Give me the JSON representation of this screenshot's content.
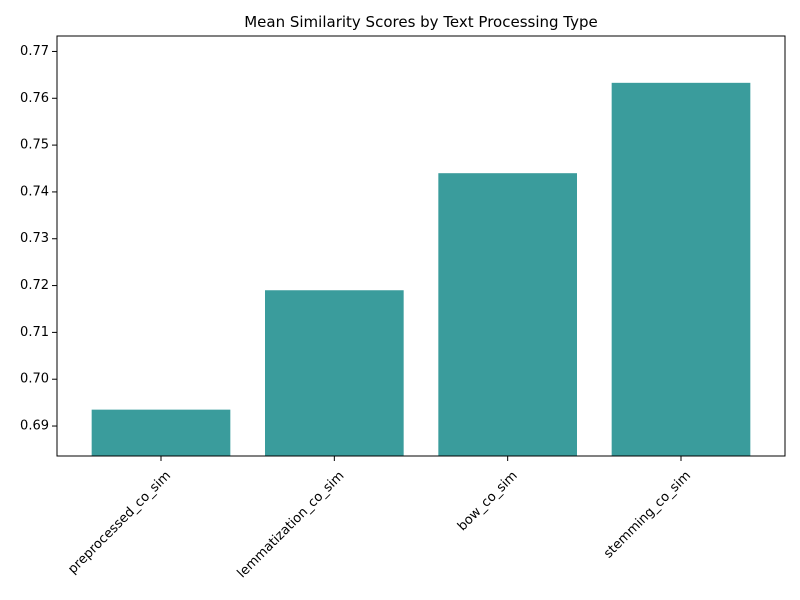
{
  "chart_data": {
    "type": "bar",
    "title": "Mean Similarity Scores by Text Processing Type",
    "xlabel": "",
    "ylabel": "",
    "categories": [
      "preprocessed_co_sim",
      "lemmatization_co_sim",
      "bow_co_sim",
      "stemming_co_sim"
    ],
    "values": [
      0.6935,
      0.719,
      0.744,
      0.7633
    ],
    "ylim": [
      0.6836,
      0.7733
    ],
    "yticks": [
      "0.69",
      "0.70",
      "0.71",
      "0.72",
      "0.73",
      "0.74",
      "0.75",
      "0.76",
      "0.77"
    ],
    "xtick_rotation_deg": 45,
    "grid": false,
    "legend": "none",
    "bar_color": "#3a9c9c"
  }
}
